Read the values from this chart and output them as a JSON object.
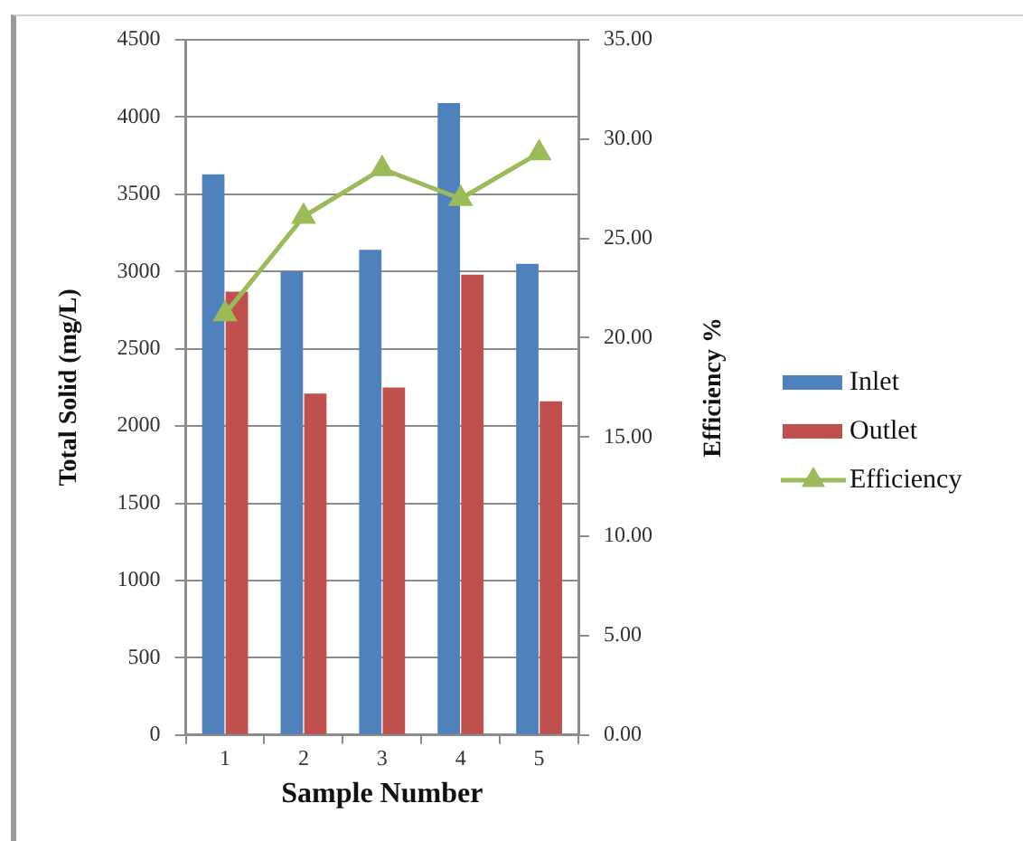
{
  "chart_data": {
    "type": "bar",
    "xlabel": "Sample Number",
    "ylabel": "Total Solid (mg/L)",
    "y2label": "Efficiency %",
    "categories": [
      "1",
      "2",
      "3",
      "4",
      "5"
    ],
    "series": [
      {
        "name": "Inlet",
        "color": "#4f81bd",
        "values": [
          3630,
          3000,
          3140,
          4090,
          3050
        ]
      },
      {
        "name": "Outlet",
        "color": "#c0504d",
        "values": [
          2870,
          2210,
          2250,
          2980,
          2160
        ]
      },
      {
        "name": "Efficiency",
        "type": "line",
        "axis": "y2",
        "color": "#9bbb59",
        "values": [
          21.2,
          26.1,
          28.5,
          27.0,
          29.3
        ]
      }
    ],
    "ylim": [
      0,
      4500
    ],
    "yticks": [
      0,
      500,
      1000,
      1500,
      2000,
      2500,
      3000,
      3500,
      4000,
      4500
    ],
    "y2lim": [
      0,
      35
    ],
    "y2ticks": [
      {
        "value": 0,
        "label": "0.00"
      },
      {
        "value": 5,
        "label": "5.00"
      },
      {
        "value": 10,
        "label": "10.00"
      },
      {
        "value": 15,
        "label": "15.00"
      },
      {
        "value": 20,
        "label": "20.00"
      },
      {
        "value": 25,
        "label": "25.00"
      },
      {
        "value": 30,
        "label": "30.00"
      },
      {
        "value": 35,
        "label": "35.00"
      }
    ],
    "grid": "y",
    "legend": "right",
    "marker": "triangle"
  }
}
